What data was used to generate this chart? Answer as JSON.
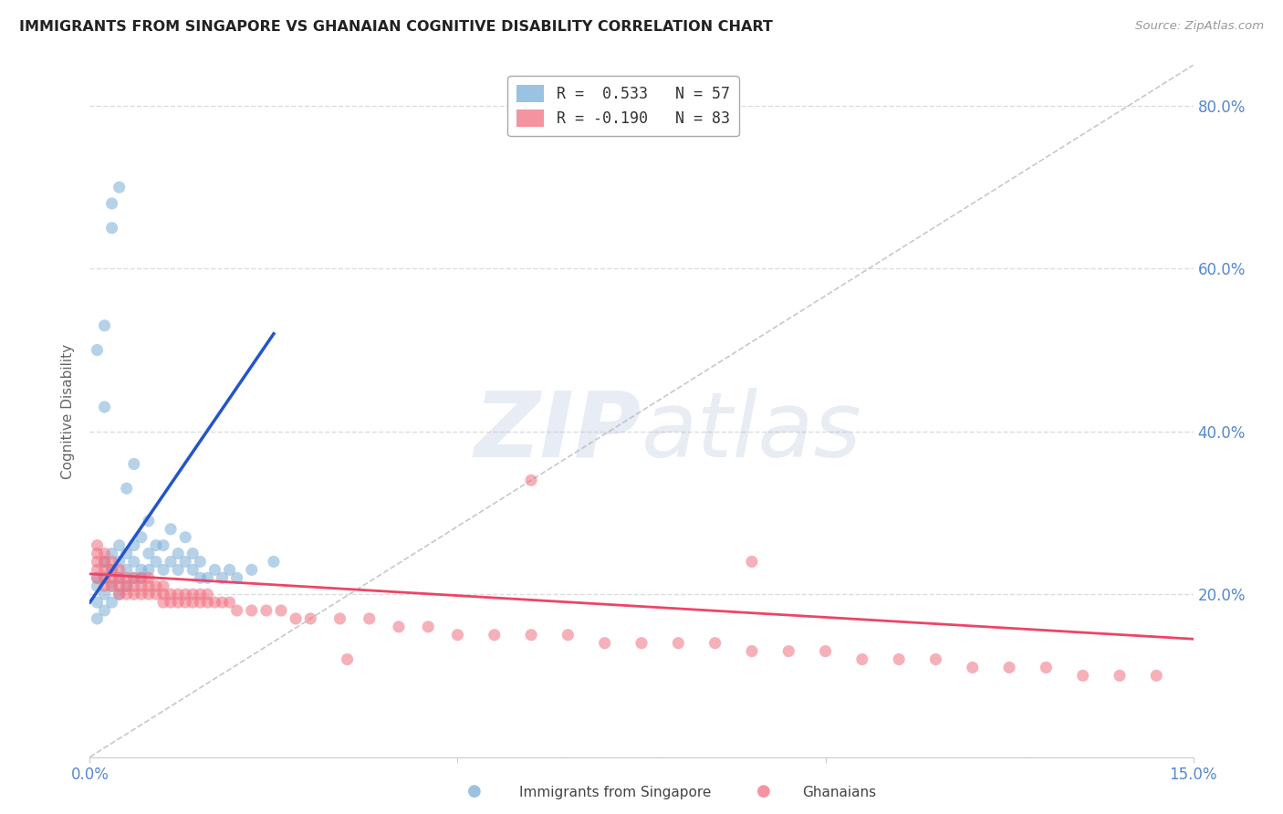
{
  "title": "IMMIGRANTS FROM SINGAPORE VS GHANAIAN COGNITIVE DISABILITY CORRELATION CHART",
  "source": "Source: ZipAtlas.com",
  "ylabel": "Cognitive Disability",
  "xlim": [
    0.0,
    0.15
  ],
  "ylim": [
    0.0,
    0.85
  ],
  "xtick_positions": [
    0.0,
    0.05,
    0.1,
    0.15
  ],
  "xticklabels": [
    "0.0%",
    "",
    "",
    "15.0%"
  ],
  "ytick_positions": [
    0.0,
    0.2,
    0.4,
    0.6,
    0.8
  ],
  "yticklabels": [
    "",
    "20.0%",
    "40.0%",
    "60.0%",
    "80.0%"
  ],
  "r1": 0.533,
  "n1": 57,
  "r2": -0.19,
  "n2": 83,
  "color_singapore": "#7aaed6",
  "color_ghanaian": "#f07080",
  "color_line1": "#2255cc",
  "color_line2": "#ee4466",
  "color_diagonal": "#bbbbbb",
  "watermark_zip": "ZIP",
  "watermark_atlas": "atlas",
  "background_color": "#FFFFFF",
  "grid_color": "#dddddd",
  "title_color": "#222222",
  "tick_color": "#5588cc",
  "legend_label1": "R =  0.533   N = 57",
  "legend_label2": "R = -0.190   N = 83",
  "sg_x": [
    0.001,
    0.001,
    0.001,
    0.001,
    0.001,
    0.002,
    0.002,
    0.002,
    0.002,
    0.002,
    0.002,
    0.003,
    0.003,
    0.003,
    0.003,
    0.003,
    0.003,
    0.004,
    0.004,
    0.004,
    0.004,
    0.004,
    0.005,
    0.005,
    0.005,
    0.005,
    0.006,
    0.006,
    0.006,
    0.006,
    0.007,
    0.007,
    0.007,
    0.008,
    0.008,
    0.008,
    0.009,
    0.009,
    0.01,
    0.01,
    0.011,
    0.011,
    0.012,
    0.012,
    0.013,
    0.013,
    0.014,
    0.014,
    0.015,
    0.015,
    0.016,
    0.017,
    0.018,
    0.019,
    0.02,
    0.022,
    0.025
  ],
  "sg_y": [
    0.17,
    0.19,
    0.21,
    0.22,
    0.5,
    0.18,
    0.2,
    0.22,
    0.24,
    0.43,
    0.53,
    0.19,
    0.21,
    0.23,
    0.25,
    0.65,
    0.68,
    0.2,
    0.22,
    0.24,
    0.26,
    0.7,
    0.21,
    0.23,
    0.25,
    0.33,
    0.22,
    0.24,
    0.26,
    0.36,
    0.22,
    0.23,
    0.27,
    0.23,
    0.25,
    0.29,
    0.24,
    0.26,
    0.23,
    0.26,
    0.24,
    0.28,
    0.23,
    0.25,
    0.24,
    0.27,
    0.23,
    0.25,
    0.22,
    0.24,
    0.22,
    0.23,
    0.22,
    0.23,
    0.22,
    0.23,
    0.24
  ],
  "gh_x": [
    0.001,
    0.001,
    0.001,
    0.001,
    0.001,
    0.002,
    0.002,
    0.002,
    0.002,
    0.002,
    0.003,
    0.003,
    0.003,
    0.003,
    0.004,
    0.004,
    0.004,
    0.004,
    0.005,
    0.005,
    0.005,
    0.006,
    0.006,
    0.006,
    0.007,
    0.007,
    0.007,
    0.008,
    0.008,
    0.008,
    0.009,
    0.009,
    0.01,
    0.01,
    0.01,
    0.011,
    0.011,
    0.012,
    0.012,
    0.013,
    0.013,
    0.014,
    0.014,
    0.015,
    0.015,
    0.016,
    0.016,
    0.017,
    0.018,
    0.019,
    0.02,
    0.022,
    0.024,
    0.026,
    0.028,
    0.03,
    0.034,
    0.038,
    0.042,
    0.046,
    0.05,
    0.055,
    0.06,
    0.065,
    0.07,
    0.075,
    0.08,
    0.085,
    0.09,
    0.095,
    0.1,
    0.105,
    0.11,
    0.115,
    0.12,
    0.125,
    0.13,
    0.135,
    0.14,
    0.145,
    0.09,
    0.035,
    0.06
  ],
  "gh_y": [
    0.22,
    0.23,
    0.24,
    0.25,
    0.26,
    0.21,
    0.22,
    0.23,
    0.24,
    0.25,
    0.21,
    0.22,
    0.23,
    0.24,
    0.2,
    0.21,
    0.22,
    0.23,
    0.2,
    0.21,
    0.22,
    0.2,
    0.21,
    0.22,
    0.2,
    0.21,
    0.22,
    0.2,
    0.21,
    0.22,
    0.2,
    0.21,
    0.19,
    0.2,
    0.21,
    0.19,
    0.2,
    0.19,
    0.2,
    0.19,
    0.2,
    0.19,
    0.2,
    0.19,
    0.2,
    0.19,
    0.2,
    0.19,
    0.19,
    0.19,
    0.18,
    0.18,
    0.18,
    0.18,
    0.17,
    0.17,
    0.17,
    0.17,
    0.16,
    0.16,
    0.15,
    0.15,
    0.15,
    0.15,
    0.14,
    0.14,
    0.14,
    0.14,
    0.13,
    0.13,
    0.13,
    0.12,
    0.12,
    0.12,
    0.11,
    0.11,
    0.11,
    0.1,
    0.1,
    0.1,
    0.24,
    0.12,
    0.34
  ]
}
